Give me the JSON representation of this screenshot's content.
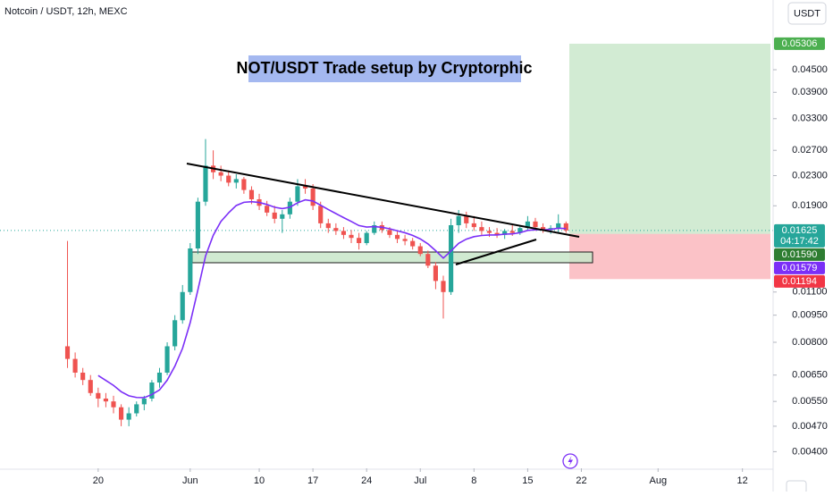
{
  "header": {
    "symbol": "Notcoin / USDT, 12h, MEXC",
    "currency": "USDT"
  },
  "chart_data": {
    "type": "candlestick",
    "title": "NOT/USDT Trade setup by Cryptorphic",
    "log_scale": true,
    "grid": false,
    "up_color": "#26a69a",
    "down_color": "#ef5350",
    "ma_color": "#7b2ff7",
    "x": [
      16,
      17,
      18,
      19,
      20,
      21,
      22,
      23,
      24,
      25,
      26,
      27,
      28,
      29,
      30,
      31,
      32,
      33,
      34,
      35,
      36,
      37,
      38,
      39,
      40,
      41,
      42,
      43,
      44,
      45,
      46,
      47,
      48,
      49,
      50,
      51,
      52,
      53,
      54,
      55,
      56,
      57,
      58,
      59,
      60,
      61,
      62,
      63,
      64,
      65,
      66,
      67,
      68,
      69,
      70,
      71,
      72,
      73,
      74,
      75,
      76,
      77,
      78,
      79,
      80,
      81
    ],
    "open": [
      0.0078,
      0.0072,
      0.0066,
      0.0063,
      0.0058,
      0.0056,
      0.0055,
      0.0053,
      0.0049,
      0.0051,
      0.0054,
      0.0056,
      0.0062,
      0.0066,
      0.0078,
      0.0092,
      0.011,
      0.0145,
      0.0195,
      0.0245,
      0.0235,
      0.023,
      0.022,
      0.0225,
      0.021,
      0.0198,
      0.019,
      0.0182,
      0.0175,
      0.018,
      0.0195,
      0.0215,
      0.0212,
      0.019,
      0.017,
      0.0165,
      0.0162,
      0.0158,
      0.0155,
      0.015,
      0.016,
      0.0168,
      0.0163,
      0.0158,
      0.0154,
      0.0152,
      0.0147,
      0.014,
      0.013,
      0.0118,
      0.011,
      0.0168,
      0.0178,
      0.017,
      0.0166,
      0.0162,
      0.016,
      0.0158,
      0.0162,
      0.016,
      0.0165,
      0.0172,
      0.0166,
      0.0163,
      0.0165,
      0.017
    ],
    "high": [
      0.0152,
      0.0075,
      0.0068,
      0.0065,
      0.006,
      0.0058,
      0.0057,
      0.0054,
      0.0053,
      0.0055,
      0.0057,
      0.0063,
      0.0068,
      0.008,
      0.0095,
      0.0115,
      0.015,
      0.02,
      0.029,
      0.027,
      0.0245,
      0.0238,
      0.0232,
      0.0228,
      0.0215,
      0.0205,
      0.0196,
      0.019,
      0.0185,
      0.02,
      0.0225,
      0.0225,
      0.0218,
      0.0195,
      0.0175,
      0.017,
      0.0166,
      0.0163,
      0.016,
      0.0162,
      0.0172,
      0.0172,
      0.0166,
      0.0162,
      0.0158,
      0.0155,
      0.015,
      0.0143,
      0.0133,
      0.0122,
      0.0175,
      0.0185,
      0.0183,
      0.0178,
      0.0172,
      0.0166,
      0.0165,
      0.0164,
      0.0168,
      0.0167,
      0.0178,
      0.0176,
      0.017,
      0.0168,
      0.018,
      0.0172
    ],
    "low": [
      0.0068,
      0.0064,
      0.0061,
      0.0057,
      0.0053,
      0.0053,
      0.0051,
      0.0047,
      0.0047,
      0.005,
      0.0052,
      0.0055,
      0.006,
      0.0065,
      0.0076,
      0.009,
      0.0108,
      0.014,
      0.019,
      0.0225,
      0.0222,
      0.0215,
      0.0212,
      0.0205,
      0.0192,
      0.0185,
      0.0178,
      0.017,
      0.016,
      0.0175,
      0.019,
      0.0205,
      0.0185,
      0.0165,
      0.016,
      0.0158,
      0.0154,
      0.015,
      0.0144,
      0.0148,
      0.0158,
      0.016,
      0.0155,
      0.015,
      0.0148,
      0.0144,
      0.0138,
      0.0128,
      0.0112,
      0.0093,
      0.0108,
      0.016,
      0.0165,
      0.0162,
      0.0158,
      0.0156,
      0.0155,
      0.0154,
      0.0157,
      0.0158,
      0.0163,
      0.0162,
      0.016,
      0.0159,
      0.016,
      0.016
    ],
    "close": [
      0.0072,
      0.0066,
      0.0063,
      0.0058,
      0.0056,
      0.0055,
      0.0053,
      0.0049,
      0.0051,
      0.0054,
      0.0056,
      0.0062,
      0.0066,
      0.0078,
      0.0092,
      0.011,
      0.0145,
      0.0195,
      0.0245,
      0.0235,
      0.023,
      0.022,
      0.0225,
      0.021,
      0.0198,
      0.019,
      0.0182,
      0.0175,
      0.018,
      0.0195,
      0.0215,
      0.0212,
      0.019,
      0.017,
      0.0165,
      0.0162,
      0.0158,
      0.0155,
      0.015,
      0.016,
      0.0168,
      0.0163,
      0.0158,
      0.0154,
      0.0152,
      0.0147,
      0.014,
      0.013,
      0.0118,
      0.011,
      0.0168,
      0.0178,
      0.017,
      0.0166,
      0.0162,
      0.016,
      0.0158,
      0.0162,
      0.016,
      0.0165,
      0.0172,
      0.0166,
      0.0163,
      0.0165,
      0.017,
      0.01625
    ],
    "xlim": [
      7.2,
      108
    ],
    "xticks": [
      {
        "value": 20,
        "label": "20"
      },
      {
        "value": 32,
        "label": "Jun"
      },
      {
        "value": 41,
        "label": "10"
      },
      {
        "value": 48,
        "label": "17"
      },
      {
        "value": 55,
        "label": "24"
      },
      {
        "value": 62,
        "label": "Jul"
      },
      {
        "value": 69,
        "label": "8"
      },
      {
        "value": 76,
        "label": "15"
      },
      {
        "value": 83,
        "label": "22"
      },
      {
        "value": 93,
        "label": "Aug"
      },
      {
        "value": 104,
        "label": "12"
      }
    ],
    "ylim": [
      0.0036,
      0.07
    ],
    "yticks": [
      {
        "value": 0.045,
        "label": "0.04500"
      },
      {
        "value": 0.039,
        "label": "0.03900"
      },
      {
        "value": 0.033,
        "label": "0.03300"
      },
      {
        "value": 0.027,
        "label": "0.02700"
      },
      {
        "value": 0.023,
        "label": "0.02300"
      },
      {
        "value": 0.019,
        "label": "0.01900"
      },
      {
        "value": 0.011,
        "label": "0.01100"
      },
      {
        "value": 0.0095,
        "label": "0.00950"
      },
      {
        "value": 0.008,
        "label": "0.00800"
      },
      {
        "value": 0.0065,
        "label": "0.00650"
      },
      {
        "value": 0.0055,
        "label": "0.00550"
      },
      {
        "value": 0.0047,
        "label": "0.00470"
      },
      {
        "value": 0.004,
        "label": "0.00400"
      }
    ],
    "price_labels": [
      {
        "value": 0.05306,
        "label": "0.05306",
        "color": "#4caf50"
      },
      {
        "value": 0.01625,
        "label": "0.01625",
        "color": "#26a69a"
      },
      {
        "value": 0.0159,
        "label": "0.01590",
        "color": "#2e7d32"
      },
      {
        "value": 0.01579,
        "label": "0.01579",
        "color": "#7b2ff7"
      },
      {
        "value": 0.01194,
        "label": "0.01194",
        "color": "#f23645"
      }
    ],
    "countdown": "04:17:42"
  }
}
